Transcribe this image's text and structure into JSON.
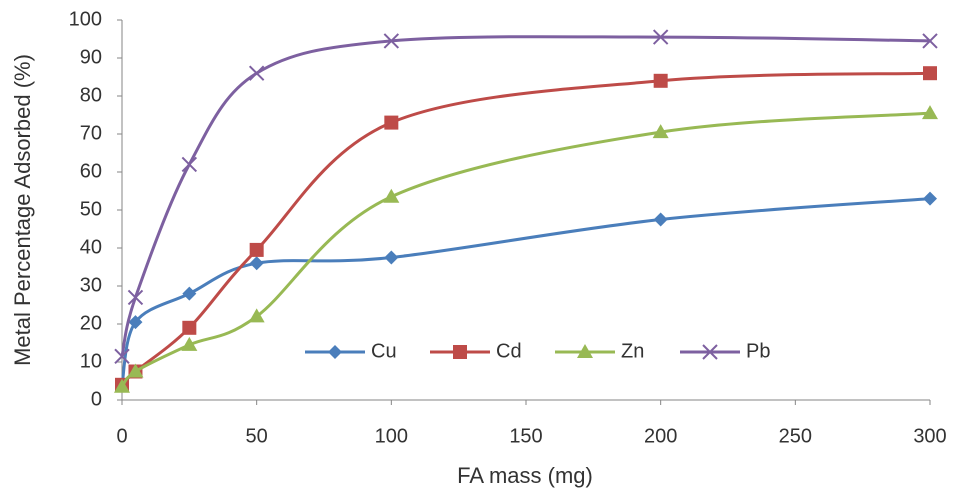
{
  "chart_data": {
    "type": "line",
    "x_label": "FA mass (mg)",
    "y_label": "Metal Percentage Adsorbed (%)",
    "x": [
      0,
      5,
      25,
      50,
      100,
      200,
      300
    ],
    "xlim": [
      0,
      300
    ],
    "xticks": [
      0,
      50,
      100,
      150,
      200,
      250,
      300
    ],
    "ylim": [
      0,
      100
    ],
    "yticks": [
      0,
      10,
      20,
      30,
      40,
      50,
      60,
      70,
      80,
      90,
      100
    ],
    "grid": false,
    "smooth": true,
    "series": [
      {
        "name": "Cu",
        "color": "#4a7ebb",
        "marker": "diamond",
        "values": [
          4,
          20.5,
          28,
          36,
          37.5,
          47.5,
          53
        ]
      },
      {
        "name": "Cd",
        "color": "#be4b48",
        "marker": "square",
        "values": [
          4,
          7.5,
          19,
          39.5,
          73,
          84,
          86
        ]
      },
      {
        "name": "Zn",
        "color": "#98b954",
        "marker": "triangle",
        "values": [
          3.5,
          7.5,
          14.5,
          22,
          53.5,
          70.5,
          75.5
        ]
      },
      {
        "name": "Pb",
        "color": "#7d60a0",
        "marker": "x",
        "values": [
          11.5,
          27,
          62,
          86,
          94.5,
          95.5,
          94.5
        ]
      }
    ]
  }
}
